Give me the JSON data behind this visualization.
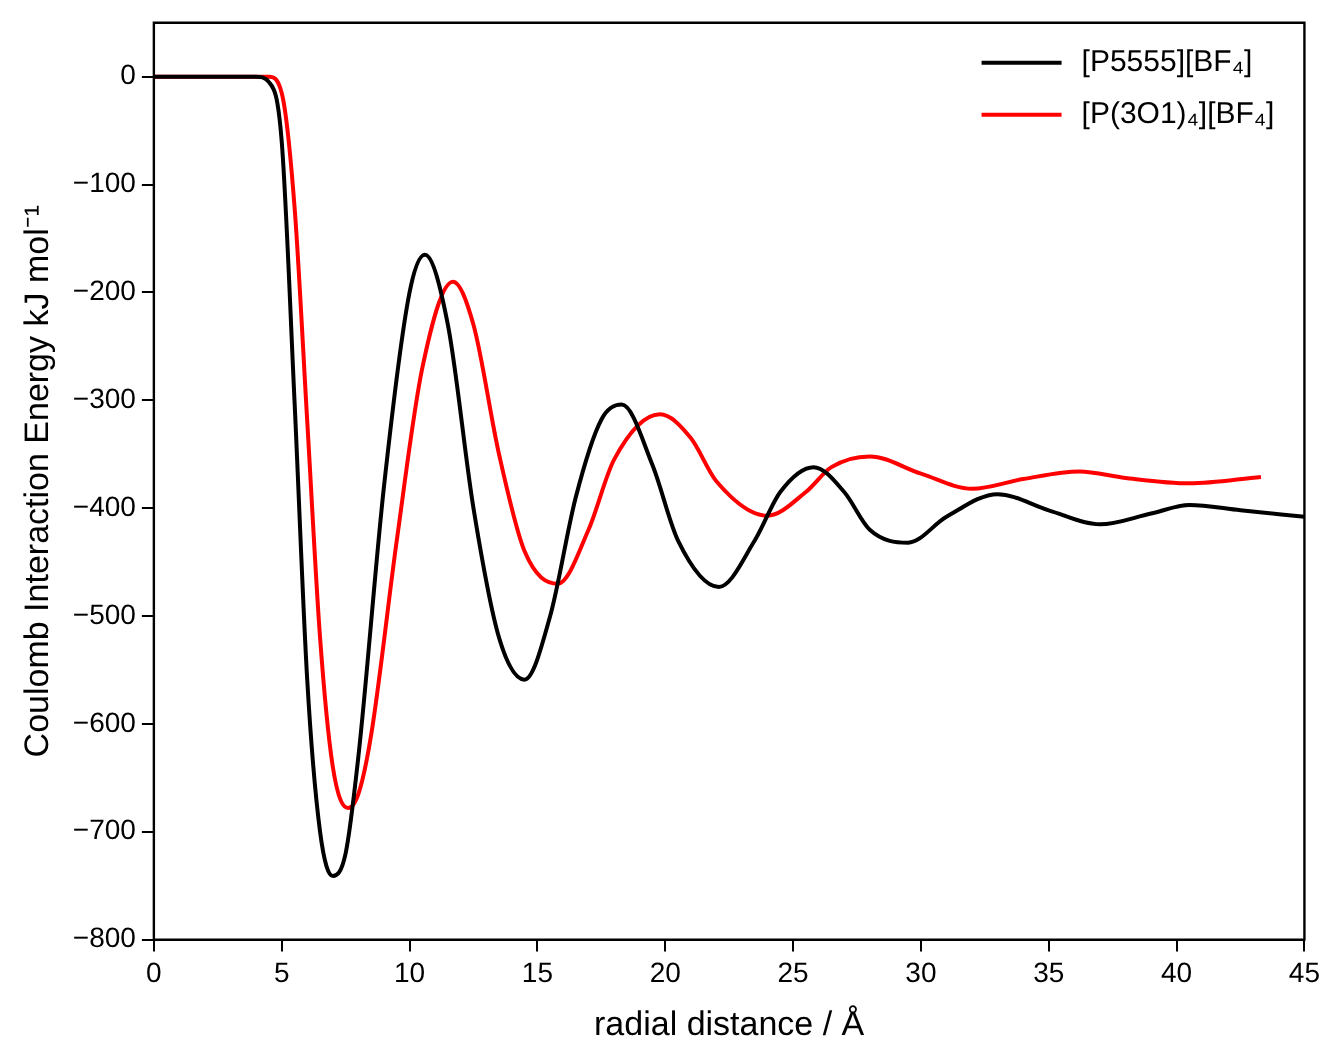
{
  "chart_data": {
    "type": "line",
    "xlabel": "radial distance / Å",
    "ylabel": "Coulomb Interaction Energy kJ mol⁻¹",
    "xlim": [
      0,
      45
    ],
    "xticks": [
      0,
      5,
      10,
      15,
      20,
      25,
      30,
      35,
      40,
      45
    ],
    "ylim": [
      -800,
      50
    ],
    "yticks": [
      -800,
      -700,
      -600,
      -500,
      -400,
      -300,
      -200,
      -100,
      0
    ],
    "grid": false,
    "legend": "top right",
    "marker": "none",
    "line_style": "solid",
    "series": [
      {
        "name": "[P5555][BF₄]",
        "color": "#000000",
        "x": [
          0,
          4,
          4.5,
          5,
          5.5,
          6,
          6.5,
          7,
          7.5,
          8,
          9,
          10,
          10.6,
          11.5,
          12.5,
          13.5,
          14.5,
          15.5,
          16.5,
          17.5,
          18.3,
          19.5,
          20.5,
          22.1,
          23.5,
          24.5,
          25.8,
          27,
          28,
          29.5,
          31,
          33,
          35,
          37,
          39,
          40.5,
          42.5,
          45
        ],
        "values": [
          0,
          0,
          -5,
          -60,
          -300,
          -560,
          -700,
          -741,
          -720,
          -630,
          -380,
          -200,
          -165,
          -230,
          -400,
          -520,
          -559,
          -500,
          -390,
          -318,
          -304,
          -360,
          -430,
          -473,
          -430,
          -385,
          -362,
          -385,
          -420,
          -432,
          -408,
          -387,
          -402,
          -415,
          -405,
          -397,
          -402,
          -408
        ]
      },
      {
        "name": "[P(3O1)₄][BF₄]",
        "color": "#ff0000",
        "x": [
          0,
          4.5,
          5,
          5.5,
          6,
          6.5,
          7,
          7.6,
          8,
          8.5,
          9.5,
          10.5,
          11.7,
          12.5,
          13.5,
          14.5,
          15.8,
          17,
          18,
          19.8,
          21,
          22,
          24,
          25.5,
          26.5,
          28,
          30,
          32,
          34,
          36.2,
          38,
          40.5,
          43.3
        ],
        "values": [
          0,
          0,
          -15,
          -120,
          -320,
          -520,
          -640,
          -678,
          -665,
          -610,
          -430,
          -270,
          -190,
          -230,
          -350,
          -440,
          -470,
          -420,
          -355,
          -313,
          -335,
          -375,
          -407,
          -385,
          -362,
          -352,
          -368,
          -382,
          -373,
          -366,
          -372,
          -377,
          -371
        ]
      }
    ]
  }
}
